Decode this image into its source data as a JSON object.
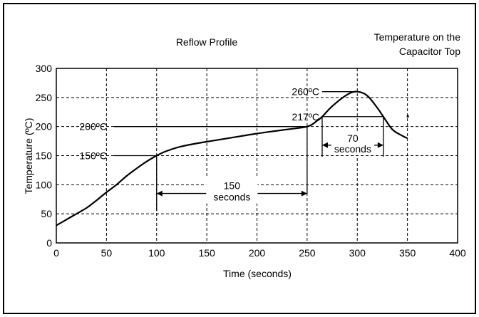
{
  "chart_data": {
    "type": "line",
    "title": "Reflow Profile",
    "subtitle_lines": [
      "Temperature on the",
      "Capacitor Top"
    ],
    "xlabel": "Time (seconds)",
    "ylabel": "Temperature (ºC)",
    "xlim": [
      0,
      400
    ],
    "ylim": [
      0,
      300
    ],
    "x_ticks": [
      "0",
      "50",
      "100",
      "150",
      "200",
      "250",
      "300",
      "350",
      "400"
    ],
    "y_ticks": [
      "0",
      "50",
      "100",
      "150",
      "200",
      "250",
      "300"
    ],
    "grid": true,
    "series": [
      {
        "x": [
          0,
          10,
          20,
          30,
          40,
          50,
          60,
          70,
          80,
          90,
          100,
          110,
          125,
          150,
          175,
          200,
          225,
          250,
          260,
          265,
          275,
          290,
          300,
          310,
          320,
          326,
          335,
          345,
          350
        ],
        "y": [
          30,
          40,
          50,
          60,
          73,
          87,
          100,
          115,
          128,
          140,
          150,
          158,
          166,
          174,
          181,
          188,
          194,
          200,
          210,
          217,
          235,
          255,
          260,
          253,
          232,
          217,
          195,
          184,
          180
        ]
      }
    ],
    "annotations": {
      "t150_label": "150ºC",
      "t200_label": "200ºC",
      "t217_label": "217ºC",
      "t260_label": "260ºC",
      "span150_line1": "150",
      "span150_line2": "seconds",
      "span70_line1": "70",
      "span70_line2": "seconds"
    }
  }
}
